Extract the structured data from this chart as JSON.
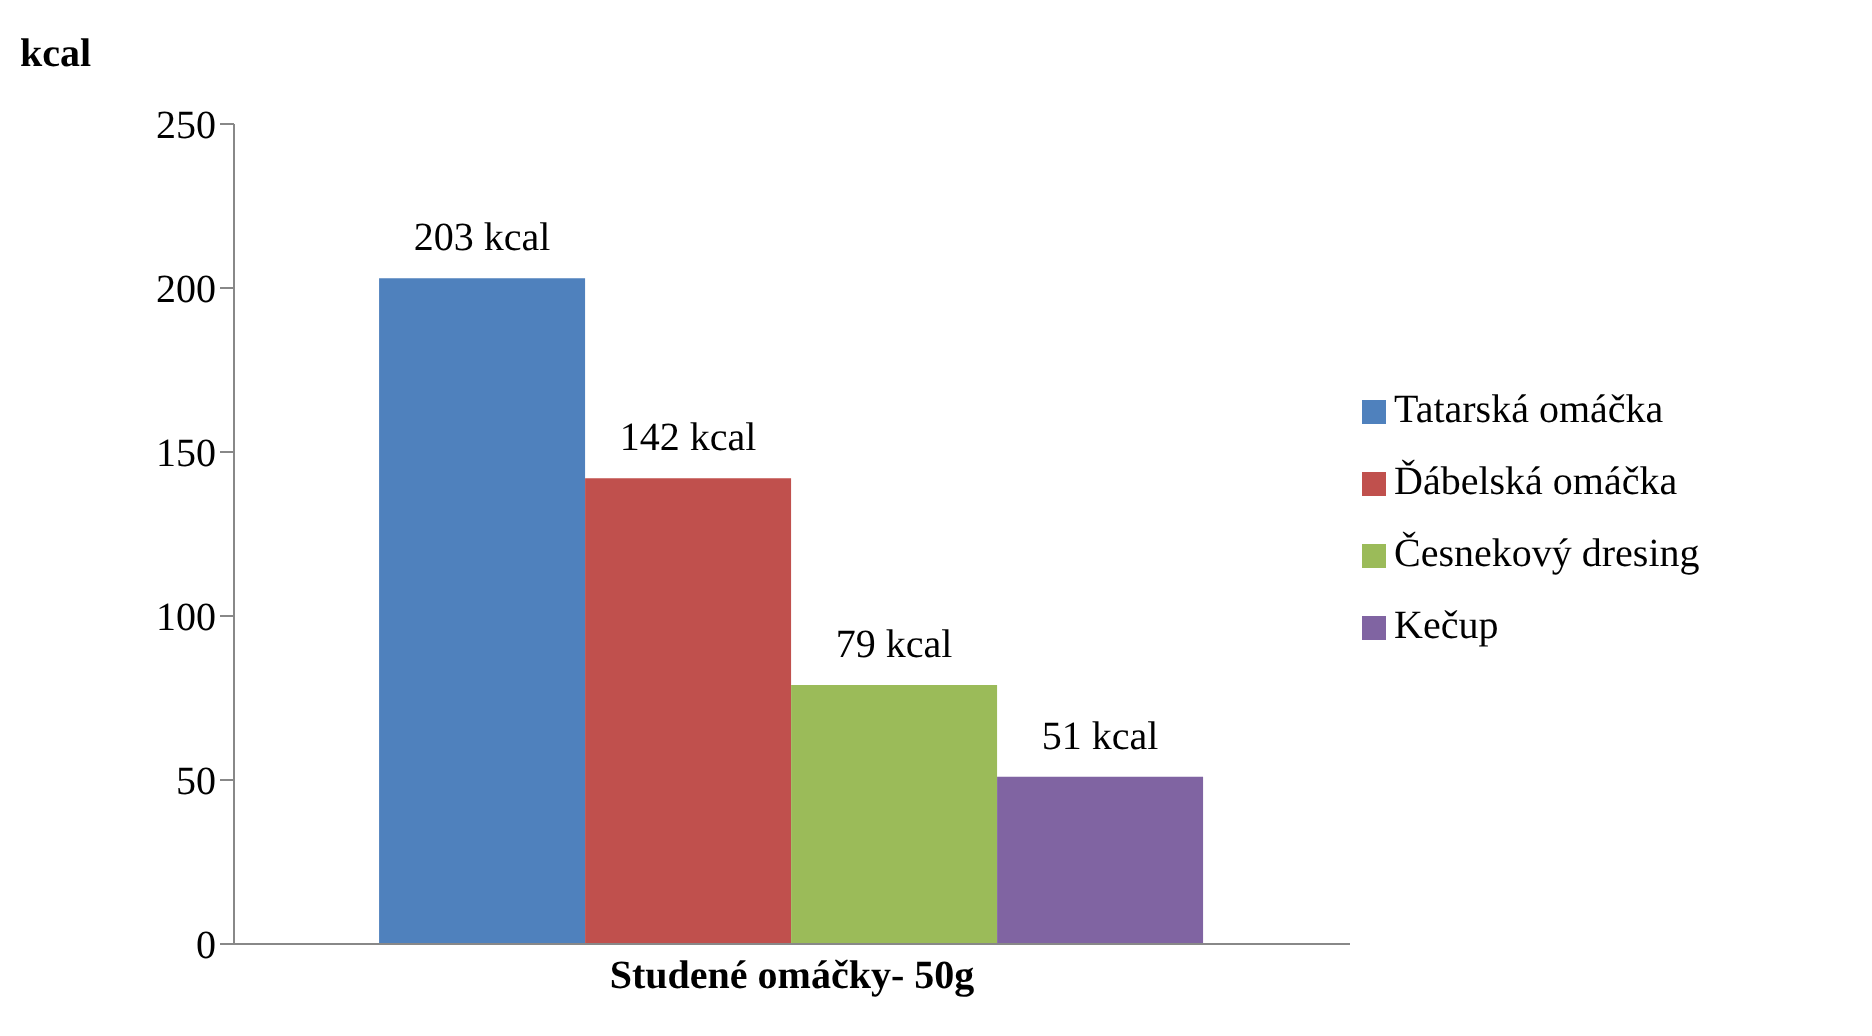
{
  "chart_data": {
    "type": "bar",
    "ylabel": "kcal",
    "categories": [
      "Studené omáčky- 50g"
    ],
    "series": [
      {
        "name": "Tatarská omáčka",
        "color": "#4f81bd",
        "values": [
          203
        ],
        "value_labels": [
          "203 kcal"
        ]
      },
      {
        "name": "Ďábelská omáčka",
        "color": "#c0504d",
        "values": [
          142
        ],
        "value_labels": [
          "142 kcal"
        ]
      },
      {
        "name": "Česnekový dresing",
        "color": "#9bbb59",
        "values": [
          79
        ],
        "value_labels": [
          "79 kcal"
        ]
      },
      {
        "name": "Kečup",
        "color": "#8064a2",
        "values": [
          51
        ],
        "value_labels": [
          "51 kcal"
        ]
      }
    ],
    "ylim": [
      0,
      250
    ],
    "yticks": [
      0,
      50,
      100,
      150,
      200,
      250
    ],
    "grid": false,
    "legend": "right"
  }
}
